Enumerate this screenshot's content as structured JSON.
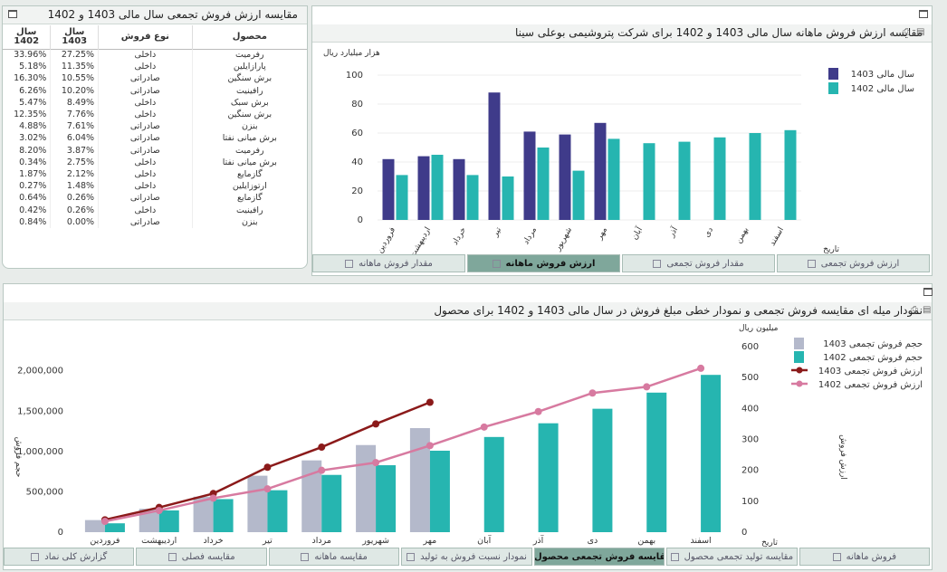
{
  "table_panel": {
    "title": "مقایسه ارزش فروش تجمعی سال مالی 1403 و 1402",
    "headers": {
      "product": "محصول",
      "type": "نوع فروش",
      "y1403": "سال 1403",
      "y1402": "سال 1402"
    },
    "rows": [
      {
        "product": "رفرمیت",
        "type": "داخلی",
        "y1403": "27.25%",
        "y1402": "33.96%"
      },
      {
        "product": "پارازایلین",
        "type": "داخلی",
        "y1403": "11.35%",
        "y1402": "5.18%"
      },
      {
        "product": "برش سنگین",
        "type": "صادراتی",
        "y1403": "10.55%",
        "y1402": "16.30%"
      },
      {
        "product": "رافینیت",
        "type": "صادراتی",
        "y1403": "10.20%",
        "y1402": "6.26%"
      },
      {
        "product": "برش سبک",
        "type": "داخلی",
        "y1403": "8.49%",
        "y1402": "5.47%"
      },
      {
        "product": "برش سنگین",
        "type": "داخلی",
        "y1403": "7.76%",
        "y1402": "12.35%"
      },
      {
        "product": "بنزن",
        "type": "صادراتی",
        "y1403": "7.61%",
        "y1402": "4.88%"
      },
      {
        "product": "برش میانی نفتا",
        "type": "صادراتی",
        "y1403": "6.04%",
        "y1402": "3.02%"
      },
      {
        "product": "رفرمیت",
        "type": "صادراتی",
        "y1403": "3.87%",
        "y1402": "8.20%"
      },
      {
        "product": "برش میانی نفتا",
        "type": "داخلی",
        "y1403": "2.75%",
        "y1402": "0.34%"
      },
      {
        "product": "گازمایع",
        "type": "داخلی",
        "y1403": "2.12%",
        "y1402": "1.87%"
      },
      {
        "product": "ارتوزایلین",
        "type": "داخلی",
        "y1403": "1.48%",
        "y1402": "0.27%"
      },
      {
        "product": "گازمایع",
        "type": "صادراتی",
        "y1403": "0.26%",
        "y1402": "0.64%"
      },
      {
        "product": "رافینیت",
        "type": "داخلی",
        "y1403": "0.26%",
        "y1402": "0.42%"
      },
      {
        "product": "بنزن",
        "type": "صادراتی",
        "y1403": "0.00%",
        "y1402": "0.84%"
      }
    ]
  },
  "top_tabs": [
    {
      "label": "ارزش فروش تجمعی",
      "icon": "line-chart-icon"
    },
    {
      "label": "مقدار فروش تجمعی",
      "icon": "line-chart-icon"
    },
    {
      "label": "ارزش فروش ماهانه",
      "icon": "bar-chart-icon",
      "active": true
    },
    {
      "label": "مقدار فروش ماهانه",
      "icon": "bar-chart-icon"
    }
  ],
  "bottom_tabs": [
    {
      "label": "فروش ماهانه",
      "icon": "table-icon"
    },
    {
      "label": "مقایسه تولید تجمعی محصول",
      "icon": "table-icon"
    },
    {
      "label": "مقایسه فروش تجمعی محصول",
      "icon": "bar-chart-icon",
      "active": true
    },
    {
      "label": "نمودار نسبت فروش به تولید",
      "icon": "table-icon"
    },
    {
      "label": "مقایسه ماهانه",
      "icon": "table-icon"
    },
    {
      "label": "مقایسه فصلی",
      "icon": "table-icon"
    },
    {
      "label": "گزارش کلی نماد",
      "icon": "report-icon"
    }
  ],
  "accent": "#7fa79b",
  "chart_data": [
    {
      "type": "bar",
      "title": "مقایسه ارزش فروش ماهانه سال مالی 1403 و 1402 برای شرکت پتروشیمی بوعلی سینا",
      "ylabel": "هزار میلیارد ریال",
      "xlabel": "تاریخ",
      "ylim": [
        0,
        100
      ],
      "yticks": [
        0,
        20,
        40,
        60,
        80,
        100
      ],
      "grid": true,
      "legend": "top-right",
      "categories": [
        "فروردین",
        "اردیبهشت",
        "خرداد",
        "تیر",
        "مرداد",
        "شهریور",
        "مهر",
        "آبان",
        "آذر",
        "دی",
        "بهمن",
        "اسفند"
      ],
      "series": [
        {
          "name": "سال مالی  1403",
          "color": "#3f3b8a",
          "values": [
            42,
            44,
            42,
            88,
            61,
            59,
            67,
            null,
            null,
            null,
            null,
            null
          ]
        },
        {
          "name": "سال مالی  1402",
          "color": "#26b5b0",
          "values": [
            31,
            45,
            31,
            30,
            50,
            34,
            56,
            53,
            54,
            57,
            60,
            62
          ]
        }
      ]
    },
    {
      "type": "bar",
      "title": "نمودار میله ای مقایسه فروش تجمعی و نمودار خطی مبلغ فروش در سال مالی 1403 و 1402 برای محصول",
      "ylabel_left": "حجم فروش",
      "ylabel_right": "ارزش فروش",
      "unit_right": "میلیون ریال",
      "xlabel": "تاریخ",
      "ylim_left": [
        0,
        2300000
      ],
      "yticks_left": [
        "0",
        "500,000",
        "1,000,000",
        "1,500,000",
        "2,000,000"
      ],
      "ylim_right": [
        0,
        600
      ],
      "yticks_right": [
        0,
        100,
        200,
        300,
        400,
        500,
        600
      ],
      "legend": "top-right",
      "categories": [
        "فروردین",
        "اردیبهشت",
        "خرداد",
        "تیر",
        "مرداد",
        "شهریور",
        "مهر",
        "آبان",
        "آذر",
        "دی",
        "بهمن",
        "اسفند"
      ],
      "series": [
        {
          "name": "حجم فروش تجمعی  1403",
          "kind": "bar",
          "color": "#b4b9cb",
          "values": [
            150000,
            290000,
            440000,
            700000,
            890000,
            1080000,
            1290000,
            null,
            null,
            null,
            null,
            null
          ]
        },
        {
          "name": "حجم فروش تجمعی  1402",
          "kind": "bar",
          "color": "#26b5b0",
          "values": [
            110000,
            270000,
            410000,
            520000,
            710000,
            830000,
            1010000,
            1180000,
            1350000,
            1530000,
            1730000,
            1950000
          ]
        },
        {
          "name": "ارزش فروش تجمعی  1403",
          "kind": "line",
          "color": "#8b1a1a",
          "values": [
            40,
            80,
            125,
            210,
            275,
            350,
            420,
            null,
            null,
            null,
            null,
            null
          ]
        },
        {
          "name": "ارزش فروش تجمعی  1402",
          "kind": "line",
          "color": "#d77aa0",
          "values": [
            35,
            70,
            110,
            140,
            200,
            225,
            280,
            340,
            390,
            450,
            470,
            530
          ]
        }
      ]
    }
  ]
}
